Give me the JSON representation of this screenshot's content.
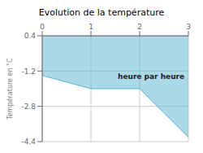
{
  "chart_data": {
    "type": "area",
    "title": "Evolution de la température",
    "y_label": "Température en °C",
    "annotations": [
      {
        "text": "heure par heure",
        "x": 1.55,
        "y": -1.45
      }
    ],
    "x": [
      0,
      1,
      2,
      3
    ],
    "values": [
      -1.4,
      -2.0,
      -2.0,
      -4.2
    ],
    "color": "#5ab4d0",
    "xlim": [
      0,
      3
    ],
    "ylim": [
      -4.4,
      0.4
    ],
    "xticks": [
      0,
      1,
      2,
      3
    ],
    "yticks": [
      0.4,
      -1.2,
      -2.8,
      -4.4
    ],
    "grid": true
  }
}
